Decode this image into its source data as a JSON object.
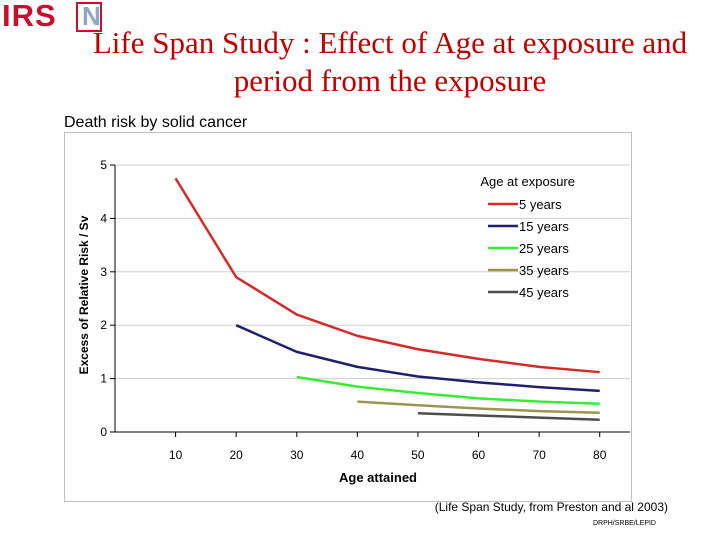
{
  "logo": {
    "text": "IRS",
    "mark": "N"
  },
  "title": "Life Span Study  : Effect of Age at exposure  and period from the exposure",
  "chart_data": {
    "type": "line",
    "title": "Death risk by solid cancer",
    "xlabel": "Age attained",
    "ylabel": "Excess of Relative Risk / Sv",
    "xlim": [
      0,
      85
    ],
    "ylim": [
      0,
      5
    ],
    "x_ticks": [
      10,
      20,
      30,
      40,
      50,
      60,
      70,
      80
    ],
    "y_ticks": [
      0,
      1,
      2,
      3,
      4,
      5
    ],
    "grid": "horizontal",
    "legend_title": "Age at exposure",
    "legend_position": "top-right",
    "series": [
      {
        "name": "5 years",
        "color": "#d42a2a",
        "x": [
          10,
          20,
          30,
          40,
          50,
          60,
          70,
          80
        ],
        "y": [
          4.75,
          2.9,
          2.2,
          1.8,
          1.55,
          1.37,
          1.22,
          1.12
        ]
      },
      {
        "name": "15 years",
        "color": "#1f1f6e",
        "x": [
          20,
          30,
          40,
          50,
          60,
          70,
          80
        ],
        "y": [
          2.0,
          1.5,
          1.22,
          1.04,
          0.93,
          0.84,
          0.77
        ]
      },
      {
        "name": "25 years",
        "color": "#33ee33",
        "x": [
          30,
          40,
          50,
          60,
          70,
          80
        ],
        "y": [
          1.03,
          0.85,
          0.73,
          0.63,
          0.57,
          0.53
        ]
      },
      {
        "name": "35 years",
        "color": "#9c9450",
        "x": [
          40,
          50,
          60,
          70,
          80
        ],
        "y": [
          0.57,
          0.5,
          0.44,
          0.39,
          0.36
        ]
      },
      {
        "name": "45 years",
        "color": "#4d4d4d",
        "x": [
          50,
          60,
          70,
          80
        ],
        "y": [
          0.35,
          0.31,
          0.27,
          0.23
        ]
      }
    ]
  },
  "source": "(Life Span Study, from Preston and al 2003)",
  "code": "DRPH/SRBE/LEPID"
}
